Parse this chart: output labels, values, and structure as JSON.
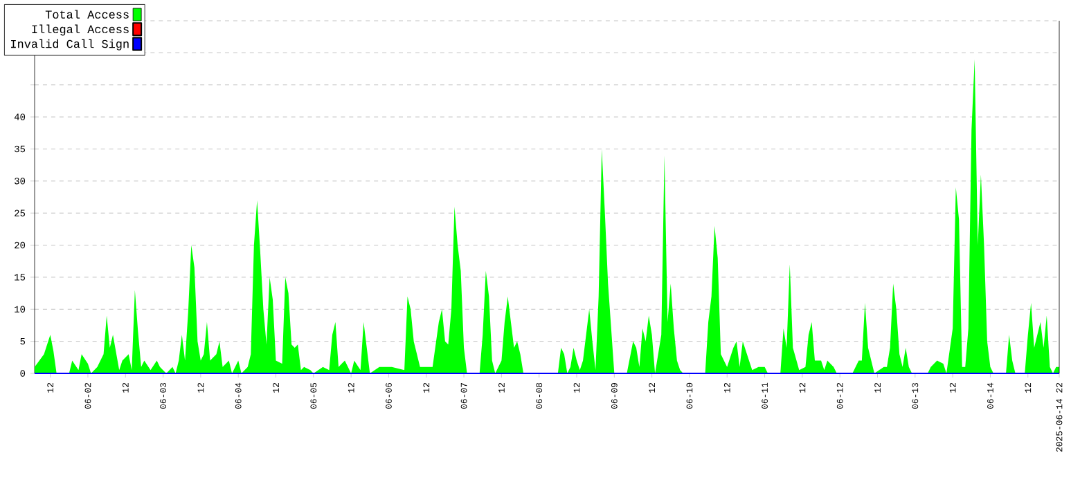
{
  "chart_data": {
    "type": "area",
    "xlim": [
      "2025-06-01T07:00",
      "2025-06-14T22:00"
    ],
    "ylim": [
      0,
      55
    ],
    "yticks": [
      0,
      5,
      10,
      15,
      20,
      25,
      30,
      35,
      40,
      {
        "value": 45,
        "label": null
      },
      {
        "value": 50,
        "label": null
      },
      {
        "value": 55,
        "label": null
      }
    ],
    "xticks": [
      {
        "value": "2025-06-01T12:00",
        "label": "12"
      },
      {
        "value": "2025-06-02T00:00",
        "label": "06-02"
      },
      {
        "value": "2025-06-02T12:00",
        "label": "12"
      },
      {
        "value": "2025-06-03T00:00",
        "label": "06-03"
      },
      {
        "value": "2025-06-03T12:00",
        "label": "12"
      },
      {
        "value": "2025-06-04T00:00",
        "label": "06-04"
      },
      {
        "value": "2025-06-04T12:00",
        "label": "12"
      },
      {
        "value": "2025-06-05T00:00",
        "label": "06-05"
      },
      {
        "value": "2025-06-05T12:00",
        "label": "12"
      },
      {
        "value": "2025-06-06T00:00",
        "label": "06-06"
      },
      {
        "value": "2025-06-06T12:00",
        "label": "12"
      },
      {
        "value": "2025-06-07T00:00",
        "label": "06-07"
      },
      {
        "value": "2025-06-07T12:00",
        "label": "12"
      },
      {
        "value": "2025-06-08T00:00",
        "label": "06-08"
      },
      {
        "value": "2025-06-08T12:00",
        "label": "12"
      },
      {
        "value": "2025-06-09T00:00",
        "label": "06-09"
      },
      {
        "value": "2025-06-09T12:00",
        "label": "12"
      },
      {
        "value": "2025-06-10T00:00",
        "label": "06-10"
      },
      {
        "value": "2025-06-10T12:00",
        "label": "12"
      },
      {
        "value": "2025-06-11T00:00",
        "label": "06-11"
      },
      {
        "value": "2025-06-11T12:00",
        "label": "12"
      },
      {
        "value": "2025-06-12T00:00",
        "label": "06-12"
      },
      {
        "value": "2025-06-12T12:00",
        "label": "12"
      },
      {
        "value": "2025-06-13T00:00",
        "label": "06-13"
      },
      {
        "value": "2025-06-13T12:00",
        "label": "12"
      },
      {
        "value": "2025-06-14T00:00",
        "label": "06-14"
      },
      {
        "value": "2025-06-14T12:00",
        "label": "12"
      },
      {
        "value": "2025-06-14T22:00",
        "label": "2025-06-14 22"
      }
    ],
    "grid": "y",
    "legend": "top left",
    "series": [
      {
        "name": "Total Access",
        "color": "#00ff00",
        "x": [
          "2025-06-01T07:00",
          "2025-06-01T10:00",
          "2025-06-01T12:00",
          "2025-06-01T13:00",
          "2025-06-01T14:00",
          "2025-06-01T18:00",
          "2025-06-01T19:00",
          "2025-06-01T21:00",
          "2025-06-01T22:00",
          "2025-06-02T00:00",
          "2025-06-02T01:00",
          "2025-06-02T03:00",
          "2025-06-02T05:00",
          "2025-06-02T06:00",
          "2025-06-02T07:00",
          "2025-06-02T08:00",
          "2025-06-02T10:00",
          "2025-06-02T11:00",
          "2025-06-02T13:00",
          "2025-06-02T14:00",
          "2025-06-02T15:00",
          "2025-06-02T16:00",
          "2025-06-02T17:00",
          "2025-06-02T18:00",
          "2025-06-02T20:00",
          "2025-06-02T22:00",
          "2025-06-02T23:00",
          "2025-06-03T01:00",
          "2025-06-03T03:00",
          "2025-06-03T04:00",
          "2025-06-03T05:00",
          "2025-06-03T06:00",
          "2025-06-03T07:00",
          "2025-06-03T08:00",
          "2025-06-03T09:00",
          "2025-06-03T10:00",
          "2025-06-03T11:00",
          "2025-06-03T12:00",
          "2025-06-03T13:00",
          "2025-06-03T14:00",
          "2025-06-03T15:00",
          "2025-06-03T17:00",
          "2025-06-03T18:00",
          "2025-06-03T19:00",
          "2025-06-03T21:00",
          "2025-06-03T22:00",
          "2025-06-04T00:00",
          "2025-06-04T01:00",
          "2025-06-04T03:00",
          "2025-06-04T04:00",
          "2025-06-04T05:00",
          "2025-06-04T06:00",
          "2025-06-04T07:00",
          "2025-06-04T08:00",
          "2025-06-04T09:00",
          "2025-06-04T10:00",
          "2025-06-04T11:00",
          "2025-06-04T12:00",
          "2025-06-04T14:00",
          "2025-06-04T15:00",
          "2025-06-04T16:00",
          "2025-06-04T17:00",
          "2025-06-04T18:00",
          "2025-06-04T19:00",
          "2025-06-04T20:00",
          "2025-06-04T21:00",
          "2025-06-04T23:00",
          "2025-06-05T00:00",
          "2025-06-05T03:00",
          "2025-06-05T05:00",
          "2025-06-05T06:00",
          "2025-06-05T07:00",
          "2025-06-05T08:00",
          "2025-06-05T09:00",
          "2025-06-05T10:00",
          "2025-06-05T12:00",
          "2025-06-05T13:00",
          "2025-06-05T15:00",
          "2025-06-05T16:00",
          "2025-06-05T17:00",
          "2025-06-05T18:00",
          "2025-06-05T21:00",
          "2025-06-06T01:00",
          "2025-06-06T05:00",
          "2025-06-06T06:00",
          "2025-06-06T07:00",
          "2025-06-06T08:00",
          "2025-06-06T10:00",
          "2025-06-06T12:00",
          "2025-06-06T14:00",
          "2025-06-06T16:00",
          "2025-06-06T17:00",
          "2025-06-06T18:00",
          "2025-06-06T19:00",
          "2025-06-06T20:00",
          "2025-06-06T21:00",
          "2025-06-06T22:00",
          "2025-06-06T23:00",
          "2025-06-07T00:00",
          "2025-06-07T01:00",
          "2025-06-07T05:00",
          "2025-06-07T06:00",
          "2025-06-07T07:00",
          "2025-06-07T08:00",
          "2025-06-07T09:00",
          "2025-06-07T10:00",
          "2025-06-07T11:00",
          "2025-06-07T12:00",
          "2025-06-07T13:00",
          "2025-06-07T14:00",
          "2025-06-07T16:00",
          "2025-06-07T17:00",
          "2025-06-07T18:00",
          "2025-06-07T19:00",
          "2025-06-08T06:00",
          "2025-06-08T07:00",
          "2025-06-08T08:00",
          "2025-06-08T09:00",
          "2025-06-08T10:00",
          "2025-06-08T11:00",
          "2025-06-08T12:00",
          "2025-06-08T13:00",
          "2025-06-08T14:00",
          "2025-06-08T16:00",
          "2025-06-08T17:00",
          "2025-06-08T18:00",
          "2025-06-08T19:00",
          "2025-06-08T20:00",
          "2025-06-08T21:00",
          "2025-06-08T22:00",
          "2025-06-08T23:00",
          "2025-06-09T00:00",
          "2025-06-09T04:00",
          "2025-06-09T06:00",
          "2025-06-09T07:00",
          "2025-06-09T08:00",
          "2025-06-09T09:00",
          "2025-06-09T10:00",
          "2025-06-09T11:00",
          "2025-06-09T12:00",
          "2025-06-09T13:00",
          "2025-06-09T15:00",
          "2025-06-09T16:00",
          "2025-06-09T17:00",
          "2025-06-09T18:00",
          "2025-06-09T19:00",
          "2025-06-09T20:00",
          "2025-06-09T21:00",
          "2025-06-09T22:00",
          "2025-06-10T05:00",
          "2025-06-10T06:00",
          "2025-06-10T07:00",
          "2025-06-10T08:00",
          "2025-06-10T09:00",
          "2025-06-10T10:00",
          "2025-06-10T12:00",
          "2025-06-10T14:00",
          "2025-06-10T15:00",
          "2025-06-10T16:00",
          "2025-06-10T17:00",
          "2025-06-10T19:00",
          "2025-06-10T20:00",
          "2025-06-10T22:00",
          "2025-06-11T00:00",
          "2025-06-11T01:00",
          "2025-06-11T05:00",
          "2025-06-11T06:00",
          "2025-06-11T07:00",
          "2025-06-11T08:00",
          "2025-06-11T09:00",
          "2025-06-11T11:00",
          "2025-06-11T13:00",
          "2025-06-11T14:00",
          "2025-06-11T15:00",
          "2025-06-11T16:00",
          "2025-06-11T18:00",
          "2025-06-11T19:00",
          "2025-06-11T20:00",
          "2025-06-11T22:00",
          "2025-06-11T23:00",
          "2025-06-12T04:00",
          "2025-06-12T06:00",
          "2025-06-12T07:00",
          "2025-06-12T08:00",
          "2025-06-12T09:00",
          "2025-06-12T10:00",
          "2025-06-12T11:00",
          "2025-06-12T14:00",
          "2025-06-12T15:00",
          "2025-06-12T16:00",
          "2025-06-12T17:00",
          "2025-06-12T18:00",
          "2025-06-12T19:00",
          "2025-06-12T20:00",
          "2025-06-12T21:00",
          "2025-06-12T22:00",
          "2025-06-12T23:00",
          "2025-06-13T04:00",
          "2025-06-13T05:00",
          "2025-06-13T07:00",
          "2025-06-13T09:00",
          "2025-06-13T10:00",
          "2025-06-13T12:00",
          "2025-06-13T13:00",
          "2025-06-13T14:00",
          "2025-06-13T15:00",
          "2025-06-13T16:00",
          "2025-06-13T17:00",
          "2025-06-13T18:00",
          "2025-06-13T19:00",
          "2025-06-13T20:00",
          "2025-06-13T21:00",
          "2025-06-13T22:00",
          "2025-06-13T23:00",
          "2025-06-14T00:00",
          "2025-06-14T01:00",
          "2025-06-14T05:00",
          "2025-06-14T06:00",
          "2025-06-14T07:00",
          "2025-06-14T08:00",
          "2025-06-14T11:00",
          "2025-06-14T12:00",
          "2025-06-14T13:00",
          "2025-06-14T14:00",
          "2025-06-14T16:00",
          "2025-06-14T17:00",
          "2025-06-14T18:00",
          "2025-06-14T19:00",
          "2025-06-14T20:00",
          "2025-06-14T21:00",
          "2025-06-14T22:00"
        ],
        "values": [
          1,
          3,
          6,
          3.5,
          0,
          0,
          2,
          0.5,
          3,
          1.5,
          0,
          1,
          3,
          9,
          4,
          6,
          0.5,
          2,
          3,
          0.5,
          13,
          6.5,
          1,
          2,
          0.5,
          2,
          1,
          0,
          1,
          0,
          2,
          6,
          2,
          9.5,
          20,
          16.5,
          5,
          2,
          3,
          8,
          2,
          3,
          5,
          1,
          2,
          0,
          2,
          0,
          1,
          3,
          20,
          27,
          19,
          10,
          4.5,
          15,
          11.5,
          2,
          1.5,
          15,
          12.5,
          4.5,
          4,
          4.5,
          0.5,
          1,
          0.5,
          0,
          1,
          0.5,
          6,
          8,
          1,
          1.5,
          2,
          0,
          2,
          0.5,
          8,
          4,
          0,
          1,
          1,
          0.5,
          12,
          10,
          5,
          1,
          1,
          1,
          8,
          10,
          5,
          4.5,
          10,
          26,
          20,
          16,
          4,
          0,
          0,
          6,
          16,
          12,
          2,
          0,
          1,
          2,
          8,
          12,
          4,
          5,
          3,
          0,
          0,
          4,
          3,
          0,
          1,
          4,
          2,
          0.5,
          2,
          10,
          5,
          0.5,
          12,
          35,
          25,
          14,
          7,
          0,
          0,
          5,
          4,
          1,
          7,
          5,
          9,
          6,
          0,
          6,
          34,
          8,
          14,
          7,
          2,
          0.5,
          0,
          0,
          8,
          12,
          23,
          18,
          3,
          1,
          4,
          5,
          1,
          5,
          2,
          0.5,
          1,
          1,
          0,
          0,
          7,
          4,
          17,
          4,
          0.5,
          1,
          6,
          8,
          2,
          2,
          0.5,
          2,
          1,
          0,
          0,
          2,
          2,
          11,
          4,
          2,
          0,
          1,
          1,
          4,
          14,
          10,
          3,
          1,
          4,
          1,
          0,
          0,
          1,
          2,
          1.5,
          0,
          7,
          29,
          24,
          1,
          1,
          7,
          38,
          49,
          20,
          31,
          20,
          5,
          1,
          0,
          0,
          6,
          2,
          0,
          0,
          6,
          11,
          4,
          8,
          4,
          9,
          1,
          0,
          1,
          1
        ]
      },
      {
        "name": "Illegal Access",
        "type": "line",
        "color": "#ff0000"
      },
      {
        "name": "Invalid Call Sign",
        "type": "line",
        "color": "#0000ff",
        "x": [
          "2025-06-01T07:00",
          "2025-06-14T22:00"
        ],
        "values": [
          0,
          0
        ]
      }
    ]
  }
}
